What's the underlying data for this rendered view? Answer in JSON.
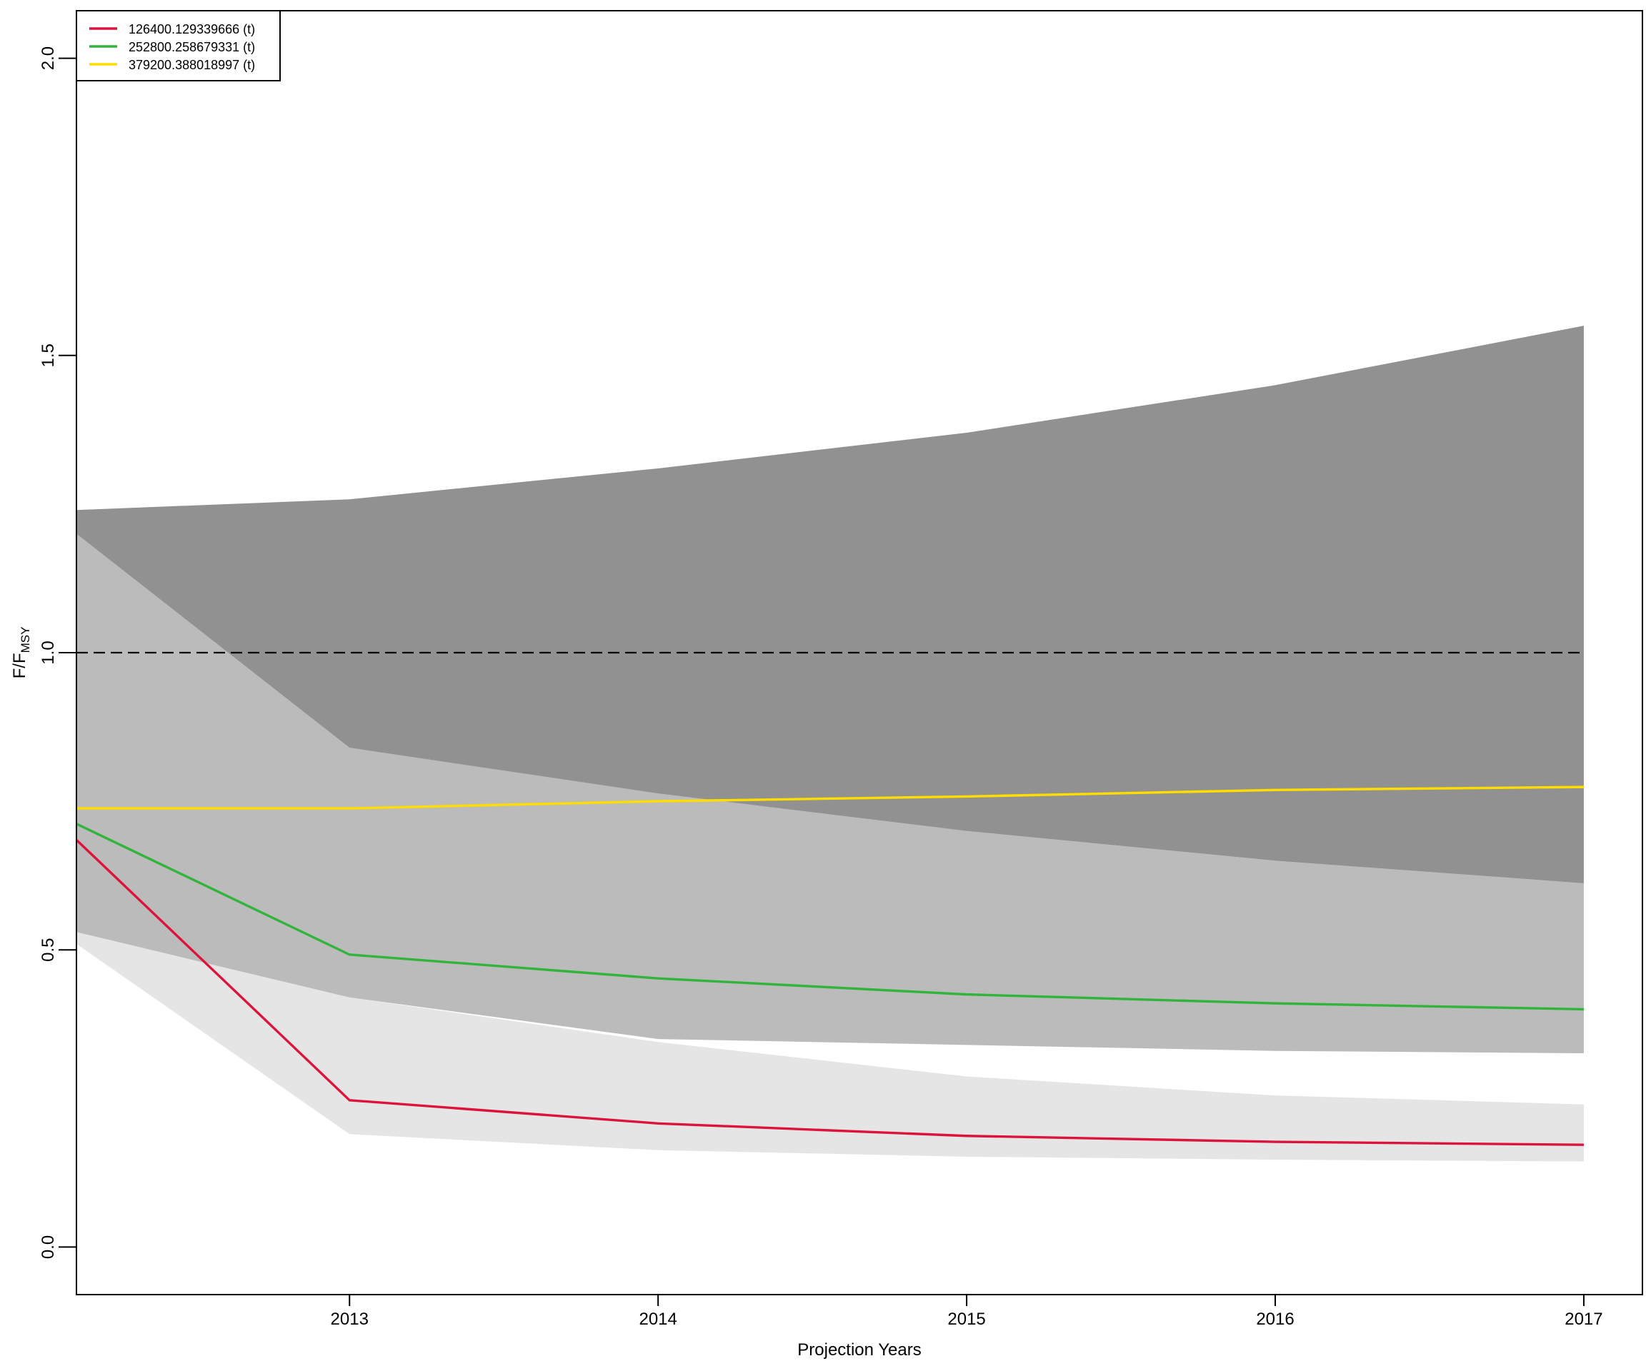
{
  "chart_data": {
    "type": "line",
    "title": "",
    "xlabel": "Projection Years",
    "ylabel_main": "F/F",
    "ylabel_sub": "MSY",
    "x_ticks": [
      2013,
      2014,
      2015,
      2016,
      2017
    ],
    "y_ticks": [
      "0.0",
      "0.5",
      "1.0",
      "1.5",
      "2.0"
    ],
    "y_tick_values": [
      0.0,
      0.5,
      1.0,
      1.5,
      2.0
    ],
    "xlim": [
      2012.115,
      2017.19
    ],
    "ylim": [
      -0.08,
      2.08
    ],
    "grid": false,
    "legend_position": "top-left",
    "reference_line": {
      "y": 1.0,
      "style": "dashed",
      "color": "#000000"
    },
    "x": [
      2012.115,
      2013,
      2014,
      2015,
      2016,
      2017
    ],
    "bands": [
      {
        "color": "#e5e5e5",
        "upper": [
          1.15,
          0.42,
          0.345,
          0.287,
          0.255,
          0.24
        ],
        "lower": [
          0.51,
          0.19,
          0.163,
          0.152,
          0.147,
          0.144
        ]
      },
      {
        "color": "#bbbbbb",
        "upper": [
          1.2,
          0.84,
          0.763,
          0.7,
          0.65,
          0.612
        ],
        "lower": [
          0.53,
          0.42,
          0.35,
          0.34,
          0.33,
          0.326
        ]
      },
      {
        "color": "#919191",
        "upper": [
          1.24,
          1.258,
          1.31,
          1.37,
          1.45,
          1.55
        ],
        "lower": [
          1.2,
          0.84,
          0.763,
          0.7,
          0.65,
          0.612
        ]
      }
    ],
    "series": [
      {
        "name": "126400.129339666 (t)",
        "color": "#dc143c",
        "values": [
          0.685,
          0.247,
          0.208,
          0.187,
          0.177,
          0.172
        ]
      },
      {
        "name": "252800.258679331 (t)",
        "color": "#32b43c",
        "values": [
          0.712,
          0.492,
          0.452,
          0.425,
          0.41,
          0.4
        ]
      },
      {
        "name": "379200.388018997 (t)",
        "color": "#ffdd00",
        "values": [
          0.738,
          0.738,
          0.75,
          0.758,
          0.769,
          0.774
        ]
      }
    ]
  }
}
